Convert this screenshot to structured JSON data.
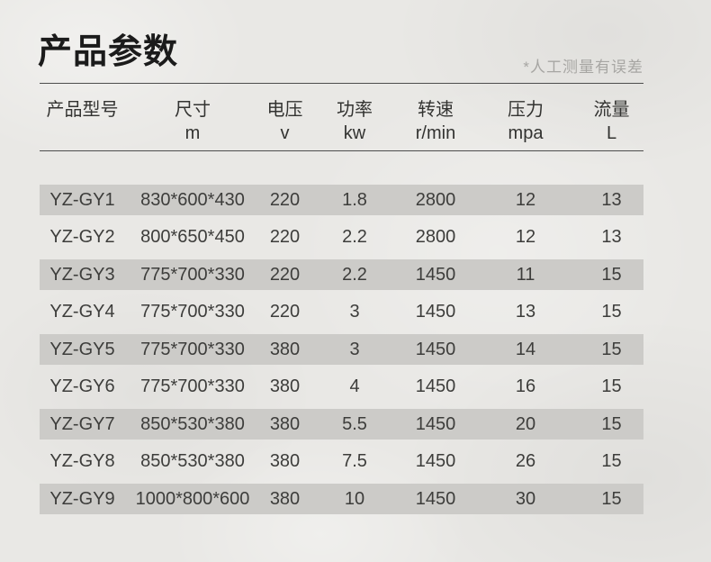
{
  "page": {
    "title": "产品参数",
    "note": "*人工测量有误差"
  },
  "table": {
    "columns": [
      {
        "label": "产品型号",
        "unit": ""
      },
      {
        "label": "尺寸",
        "unit": "m"
      },
      {
        "label": "电压",
        "unit": "v"
      },
      {
        "label": "功率",
        "unit": "kw"
      },
      {
        "label": "转速",
        "unit": "r/min"
      },
      {
        "label": "压力",
        "unit": "mpa"
      },
      {
        "label": "流量",
        "unit": "L"
      }
    ],
    "rows": [
      [
        "YZ-GY1",
        "830*600*430",
        "220",
        "1.8",
        "2800",
        "12",
        "13"
      ],
      [
        "YZ-GY2",
        "800*650*450",
        "220",
        "2.2",
        "2800",
        "12",
        "13"
      ],
      [
        "YZ-GY3",
        "775*700*330",
        "220",
        "2.2",
        "1450",
        "11",
        "15"
      ],
      [
        "YZ-GY4",
        "775*700*330",
        "220",
        "3",
        "1450",
        "13",
        "15"
      ],
      [
        "YZ-GY5",
        "775*700*330",
        "380",
        "3",
        "1450",
        "14",
        "15"
      ],
      [
        "YZ-GY6",
        "775*700*330",
        "380",
        "4",
        "1450",
        "16",
        "15"
      ],
      [
        "YZ-GY7",
        "850*530*380",
        "380",
        "5.5",
        "1450",
        "20",
        "15"
      ],
      [
        "YZ-GY8",
        "850*530*380",
        "380",
        "7.5",
        "1450",
        "26",
        "15"
      ],
      [
        "YZ-GY9",
        "1000*800*600",
        "380",
        "10",
        "1450",
        "30",
        "15"
      ]
    ]
  },
  "colors": {
    "background": "#e9e8e5",
    "row_highlight": "#cccbc8",
    "text": "#3d3d3b",
    "title": "#1b1b1b",
    "note": "#a7a6a3",
    "divider": "#4d4d4d"
  }
}
